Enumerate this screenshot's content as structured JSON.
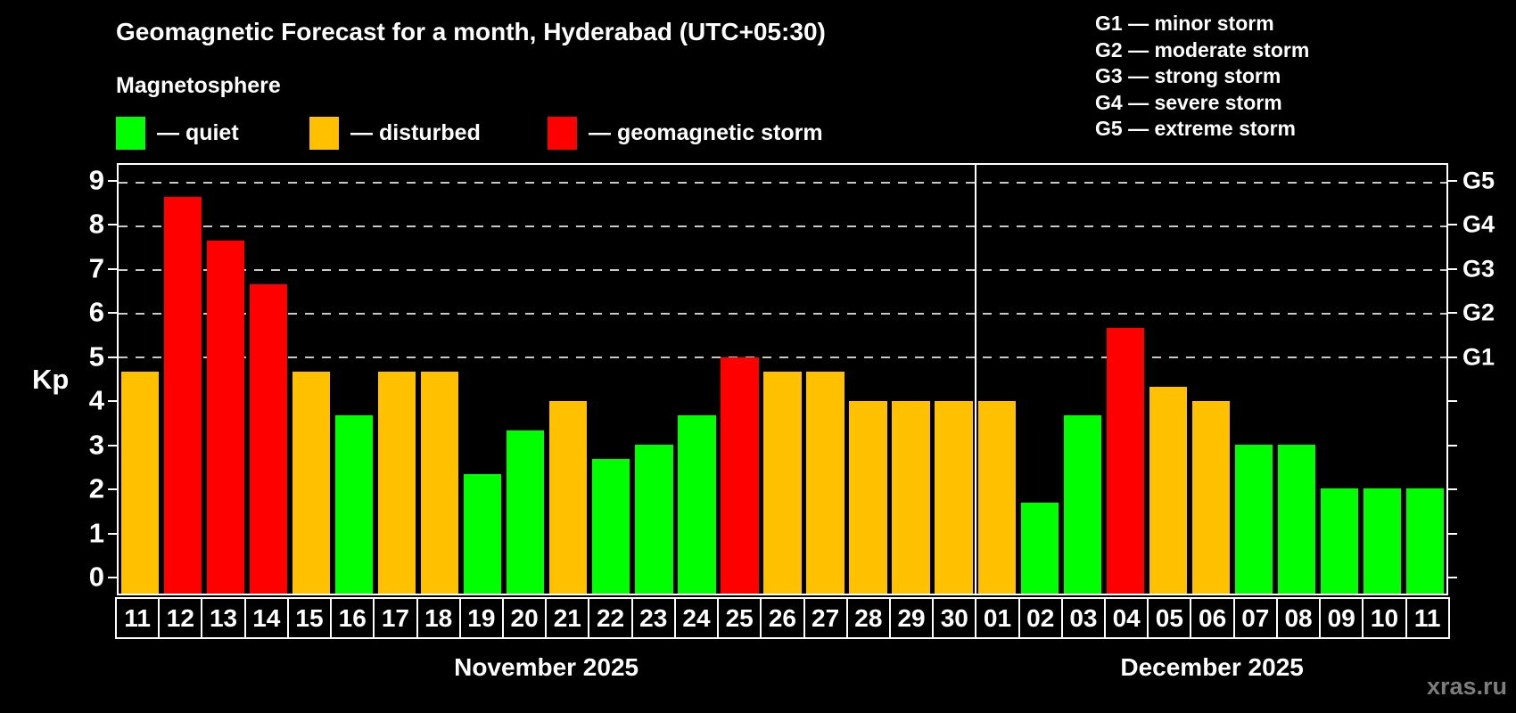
{
  "title": "Geomagnetic Forecast for a month, Hyderabad (UTC+05:30)",
  "subtitle": "Magnetosphere",
  "kp_legend": [
    {
      "key": "quiet",
      "label": "— quiet"
    },
    {
      "key": "disturbed",
      "label": "— disturbed"
    },
    {
      "key": "storm",
      "label": "— geomagnetic storm"
    }
  ],
  "g_legend": [
    "G1 — minor storm",
    "G2 — moderate storm",
    "G3 — strong storm",
    "G4 — severe storm",
    "G5 — extreme storm"
  ],
  "watermark": "xras.ru",
  "colors": {
    "quiet": "#00ff00",
    "disturbed": "#ffc000",
    "storm": "#ff0000",
    "grid": "#c9c9c9",
    "axis": "#ffffff",
    "background": "#000000"
  },
  "chart_data": {
    "type": "bar",
    "title": "Geomagnetic Forecast for a month, Hyderabad (UTC+05:30)",
    "ylabel": "Kp",
    "xlabel": "",
    "ylim": [
      0,
      9
    ],
    "yticks": [
      0,
      1,
      2,
      3,
      4,
      5,
      6,
      7,
      8,
      9
    ],
    "grid_levels": [
      5,
      6,
      7,
      8,
      9
    ],
    "grid_style": "dashed",
    "legend_position": "top-left",
    "right_axis": [
      {
        "label": "G1",
        "kp": 5
      },
      {
        "label": "G2",
        "kp": 6
      },
      {
        "label": "G3",
        "kp": 7
      },
      {
        "label": "G4",
        "kp": 8
      },
      {
        "label": "G5",
        "kp": 9
      }
    ],
    "months": [
      {
        "label": "November 2025",
        "days": 20
      },
      {
        "label": "December 2025",
        "days": 11
      }
    ],
    "bars": [
      {
        "day": "11",
        "kp": 4.67,
        "status": "disturbed"
      },
      {
        "day": "12",
        "kp": 8.67,
        "status": "storm"
      },
      {
        "day": "13",
        "kp": 7.67,
        "status": "storm"
      },
      {
        "day": "14",
        "kp": 6.67,
        "status": "storm"
      },
      {
        "day": "15",
        "kp": 4.67,
        "status": "disturbed"
      },
      {
        "day": "16",
        "kp": 3.67,
        "status": "quiet"
      },
      {
        "day": "17",
        "kp": 4.67,
        "status": "disturbed"
      },
      {
        "day": "18",
        "kp": 4.67,
        "status": "disturbed"
      },
      {
        "day": "19",
        "kp": 2.33,
        "status": "quiet"
      },
      {
        "day": "20",
        "kp": 3.33,
        "status": "quiet"
      },
      {
        "day": "21",
        "kp": 4.0,
        "status": "disturbed"
      },
      {
        "day": "22",
        "kp": 2.67,
        "status": "quiet"
      },
      {
        "day": "23",
        "kp": 3.0,
        "status": "quiet"
      },
      {
        "day": "24",
        "kp": 3.67,
        "status": "quiet"
      },
      {
        "day": "25",
        "kp": 5.0,
        "status": "storm"
      },
      {
        "day": "26",
        "kp": 4.67,
        "status": "disturbed"
      },
      {
        "day": "27",
        "kp": 4.67,
        "status": "disturbed"
      },
      {
        "day": "28",
        "kp": 4.0,
        "status": "disturbed"
      },
      {
        "day": "29",
        "kp": 4.0,
        "status": "disturbed"
      },
      {
        "day": "30",
        "kp": 4.0,
        "status": "disturbed"
      },
      {
        "day": "01",
        "kp": 4.0,
        "status": "disturbed"
      },
      {
        "day": "02",
        "kp": 1.67,
        "status": "quiet"
      },
      {
        "day": "03",
        "kp": 3.67,
        "status": "quiet"
      },
      {
        "day": "04",
        "kp": 5.67,
        "status": "storm"
      },
      {
        "day": "05",
        "kp": 4.33,
        "status": "disturbed"
      },
      {
        "day": "06",
        "kp": 4.0,
        "status": "disturbed"
      },
      {
        "day": "07",
        "kp": 3.0,
        "status": "quiet"
      },
      {
        "day": "08",
        "kp": 3.0,
        "status": "quiet"
      },
      {
        "day": "09",
        "kp": 2.0,
        "status": "quiet"
      },
      {
        "day": "10",
        "kp": 2.0,
        "status": "quiet"
      },
      {
        "day": "11",
        "kp": 2.0,
        "status": "quiet"
      }
    ]
  }
}
